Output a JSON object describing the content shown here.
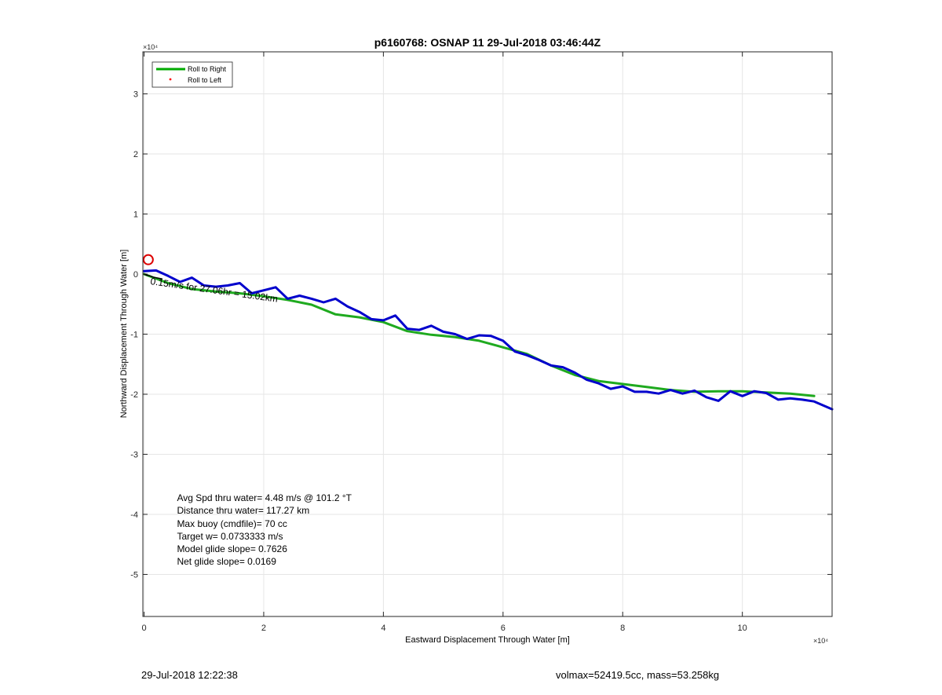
{
  "chart_data": {
    "type": "line",
    "title": "p6160768: OSNAP 11 29-Jul-2018 03:46:44Z",
    "xlabel": "Eastward Displacement Through Water [m]",
    "ylabel": "Northward Displacement Through Water [m]",
    "xlim": [
      -200,
      115000
    ],
    "ylim": [
      -57000,
      37000
    ],
    "x_exponent_label": "×10⁴",
    "y_exponent_label": "×10⁴",
    "x_ticks": [
      0,
      20000,
      40000,
      60000,
      80000,
      100000
    ],
    "x_tick_labels": [
      "0",
      "2",
      "4",
      "6",
      "8",
      "10"
    ],
    "y_ticks": [
      -50000,
      -40000,
      -30000,
      -20000,
      -10000,
      0,
      10000,
      20000,
      30000
    ],
    "y_tick_labels": [
      "-5",
      "-4",
      "-3",
      "-2",
      "-1",
      "0",
      "1",
      "2",
      "3"
    ],
    "grid": true,
    "legend_position": "top-left",
    "legend": [
      {
        "label": "Roll to Right",
        "color": "#00aa00",
        "style": "line"
      },
      {
        "label": "Roll to Left",
        "color": "#ff0000",
        "style": "dot"
      }
    ],
    "series": [
      {
        "name": "Roll to Right",
        "color": "#1faa1f",
        "x": [
          0,
          4000,
          8000,
          12000,
          16000,
          20000,
          24000,
          28000,
          32000,
          36000,
          40000,
          44000,
          48000,
          52000,
          56000,
          60000,
          64000,
          68000,
          72000,
          76000,
          80000,
          84000,
          88000,
          92000,
          96000,
          100000,
          104000,
          108000,
          112000
        ],
        "y": [
          0,
          -1500,
          -2500,
          -2900,
          -3200,
          -3700,
          -4300,
          -5100,
          -6700,
          -7200,
          -8000,
          -9500,
          -10100,
          -10500,
          -11100,
          -12200,
          -13300,
          -15200,
          -16800,
          -17800,
          -18300,
          -18800,
          -19300,
          -19600,
          -19500,
          -19500,
          -19700,
          -19900,
          -20300
        ]
      },
      {
        "name": "",
        "color": "#0000cc",
        "x": [
          0,
          2000,
          4000,
          6000,
          8000,
          10000,
          12000,
          14000,
          16000,
          18000,
          20000,
          22000,
          24000,
          26000,
          28000,
          30000,
          32000,
          34000,
          36000,
          38000,
          40000,
          42000,
          44000,
          46000,
          48000,
          50000,
          52000,
          54000,
          56000,
          58000,
          60000,
          62000,
          64000,
          66000,
          68000,
          70000,
          72000,
          74000,
          76000,
          78000,
          80000,
          82000,
          84000,
          86000,
          88000,
          90000,
          92000,
          94000,
          96000,
          98000,
          100000,
          102000,
          104000,
          106000,
          108000,
          110000,
          112000,
          115000
        ],
        "y": [
          500,
          600,
          -300,
          -1300,
          -600,
          -1900,
          -2100,
          -1900,
          -1500,
          -3200,
          -2700,
          -2200,
          -4100,
          -3600,
          -4100,
          -4700,
          -4100,
          -5400,
          -6300,
          -7500,
          -7700,
          -6900,
          -9100,
          -9300,
          -8600,
          -9600,
          -10000,
          -10800,
          -10200,
          -10300,
          -11100,
          -12900,
          -13500,
          -14300,
          -15200,
          -15500,
          -16400,
          -17600,
          -18200,
          -19100,
          -18700,
          -19600,
          -19600,
          -19900,
          -19300,
          -19900,
          -19400,
          -20500,
          -21100,
          -19500,
          -20300,
          -19500,
          -19800,
          -20900,
          -20700,
          -20900,
          -21200,
          -22500
        ]
      },
      {
        "name": "",
        "color": "#000000",
        "x": [
          0,
          500,
          1000,
          1500,
          2000,
          2500,
          3000
        ],
        "y": [
          0,
          -200,
          -300,
          -500,
          -600,
          -700,
          -800
        ]
      }
    ],
    "markers": [
      {
        "type": "circle",
        "color": "#dd0000",
        "x": 700,
        "y": 2400
      }
    ],
    "annotations": [
      {
        "text": "0.15m/s for 27.06hr = 15.02km",
        "x": 1000,
        "y": -1700
      },
      {
        "text": "Avg Spd thru water=  4.48 m/s @ 101.2 °T",
        "x": 5500,
        "y": -37800
      },
      {
        "text": "Distance thru water= 117.27 km",
        "x": 5500,
        "y": -39900
      },
      {
        "text": "Max buoy (cmdfile)= 70 cc",
        "x": 5500,
        "y": -42100
      },
      {
        "text": "Target w= 0.0733333 m/s",
        "x": 5500,
        "y": -44200
      },
      {
        "text": "Model glide slope= 0.7626",
        "x": 5500,
        "y": -46300
      },
      {
        "text": "Net glide slope= 0.0169",
        "x": 5500,
        "y": -48400
      }
    ]
  },
  "footer": {
    "timestamp": "29-Jul-2018 12:22:38",
    "info": "volmax=52419.5cc, mass=53.258kg"
  }
}
